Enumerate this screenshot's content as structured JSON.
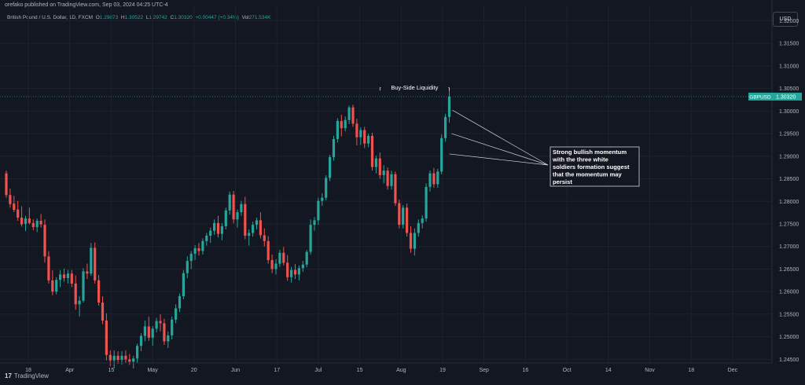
{
  "header": {
    "published": "orefako published on TradingView.com, Sep 03, 2024 04:25 UTC-4",
    "symbol_desc": "British Pound / U.S. Dollar, 1D, FXCM",
    "ohlc": [
      {
        "k": "O",
        "v": "1.29873"
      },
      {
        "k": "H",
        "v": "1.30522"
      },
      {
        "k": "L",
        "v": "1.29742"
      },
      {
        "k": "C",
        "v": "1.30320"
      }
    ],
    "change": "+0.00447 (+0.34%)",
    "volume_label": "Vol",
    "volume": "271.534K"
  },
  "currency_button": "USD",
  "footer": {
    "logo": "17",
    "brand": "TradingView"
  },
  "colors": {
    "up": "#26a69a",
    "down": "#ef5350",
    "background": "#131722",
    "grid": "#1e222d",
    "price_tag": "#26a69a"
  },
  "chart_data": {
    "type": "candlestick",
    "symbol": "GBPUSD",
    "last_price": 1.3032,
    "last_price_label": "1.30320",
    "ylim": [
      1.2442,
      1.3232
    ],
    "y_ticks": [
      "1.32000",
      "1.31500",
      "1.31000",
      "1.30500",
      "1.30000",
      "1.29500",
      "1.29000",
      "1.28500",
      "1.28000",
      "1.27500",
      "1.27000",
      "1.26500",
      "1.26000",
      "1.25500",
      "1.25000",
      "1.24500"
    ],
    "x_ticks": [
      "18",
      "Apr",
      "15",
      "May",
      "20",
      "Jun",
      "17",
      "Jul",
      "15",
      "Aug",
      "19",
      "Sep",
      "16",
      "Oct",
      "14",
      "Nov",
      "18",
      "Dec"
    ],
    "grid": true,
    "candles": [
      [
        1.2862,
        1.2868,
        1.2808,
        1.2814
      ],
      [
        1.2814,
        1.2828,
        1.2786,
        1.2794
      ],
      [
        1.2795,
        1.2812,
        1.2776,
        1.2781
      ],
      [
        1.2782,
        1.2801,
        1.2757,
        1.2764
      ],
      [
        1.2764,
        1.2789,
        1.2744,
        1.2749
      ],
      [
        1.275,
        1.2768,
        1.2734,
        1.2762
      ],
      [
        1.2762,
        1.2786,
        1.2749,
        1.2752
      ],
      [
        1.2752,
        1.276,
        1.2736,
        1.2743
      ],
      [
        1.2743,
        1.2762,
        1.2732,
        1.2757
      ],
      [
        1.2757,
        1.2772,
        1.2742,
        1.2749
      ],
      [
        1.2748,
        1.276,
        1.2664,
        1.2678
      ],
      [
        1.2678,
        1.269,
        1.2618,
        1.2625
      ],
      [
        1.2625,
        1.2647,
        1.2592,
        1.26
      ],
      [
        1.26,
        1.2632,
        1.2594,
        1.2626
      ],
      [
        1.2626,
        1.2648,
        1.261,
        1.2638
      ],
      [
        1.2638,
        1.2651,
        1.2622,
        1.263
      ],
      [
        1.263,
        1.2648,
        1.2618,
        1.264
      ],
      [
        1.264,
        1.2648,
        1.261,
        1.2618
      ],
      [
        1.2618,
        1.2636,
        1.256,
        1.2572
      ],
      [
        1.2572,
        1.259,
        1.2545,
        1.258
      ],
      [
        1.258,
        1.2652,
        1.2576,
        1.2645
      ],
      [
        1.2645,
        1.2662,
        1.2628,
        1.264
      ],
      [
        1.264,
        1.2708,
        1.2635,
        1.2697
      ],
      [
        1.2697,
        1.2709,
        1.2618,
        1.2625
      ],
      [
        1.2625,
        1.2637,
        1.2569,
        1.2576
      ],
      [
        1.2576,
        1.259,
        1.2528,
        1.2536
      ],
      [
        1.2536,
        1.2552,
        1.2448,
        1.246
      ],
      [
        1.246,
        1.247,
        1.2435,
        1.2448
      ],
      [
        1.2448,
        1.247,
        1.243,
        1.2458
      ],
      [
        1.2458,
        1.2468,
        1.244,
        1.2449
      ],
      [
        1.2449,
        1.2468,
        1.2438,
        1.2458
      ],
      [
        1.2458,
        1.247,
        1.2442,
        1.245
      ],
      [
        1.245,
        1.2462,
        1.2438,
        1.2445
      ],
      [
        1.2445,
        1.2458,
        1.243,
        1.2452
      ],
      [
        1.2452,
        1.2485,
        1.2442,
        1.248
      ],
      [
        1.248,
        1.2508,
        1.2468,
        1.2502
      ],
      [
        1.2502,
        1.2536,
        1.249,
        1.2523
      ],
      [
        1.2523,
        1.2545,
        1.2491,
        1.2498
      ],
      [
        1.2498,
        1.2524,
        1.248,
        1.2518
      ],
      [
        1.2518,
        1.2542,
        1.251,
        1.2535
      ],
      [
        1.2535,
        1.255,
        1.2512,
        1.253
      ],
      [
        1.253,
        1.254,
        1.2482,
        1.249
      ],
      [
        1.249,
        1.2512,
        1.2475,
        1.2503
      ],
      [
        1.2503,
        1.2545,
        1.2494,
        1.2538
      ],
      [
        1.2538,
        1.2572,
        1.253,
        1.2563
      ],
      [
        1.2563,
        1.2596,
        1.2555,
        1.259
      ],
      [
        1.259,
        1.2648,
        1.2583,
        1.2641
      ],
      [
        1.2641,
        1.2678,
        1.263,
        1.2668
      ],
      [
        1.2668,
        1.269,
        1.265,
        1.2684
      ],
      [
        1.2684,
        1.2703,
        1.267,
        1.2696
      ],
      [
        1.2696,
        1.2708,
        1.268,
        1.269
      ],
      [
        1.269,
        1.2718,
        1.2682,
        1.2712
      ],
      [
        1.2712,
        1.273,
        1.2702,
        1.2724
      ],
      [
        1.2724,
        1.2742,
        1.2708,
        1.2735
      ],
      [
        1.2735,
        1.276,
        1.2726,
        1.2752
      ],
      [
        1.2752,
        1.2768,
        1.272,
        1.2728
      ],
      [
        1.2728,
        1.2752,
        1.2714,
        1.2745
      ],
      [
        1.2745,
        1.2786,
        1.2738,
        1.278
      ],
      [
        1.278,
        1.2822,
        1.277,
        1.2815
      ],
      [
        1.2815,
        1.2823,
        1.2751,
        1.276
      ],
      [
        1.276,
        1.2782,
        1.2742,
        1.2776
      ],
      [
        1.2776,
        1.2801,
        1.2768,
        1.2794
      ],
      [
        1.2794,
        1.281,
        1.2716,
        1.2724
      ],
      [
        1.2724,
        1.2738,
        1.2702,
        1.273
      ],
      [
        1.273,
        1.2755,
        1.2722,
        1.2748
      ],
      [
        1.2748,
        1.2764,
        1.2738,
        1.2758
      ],
      [
        1.2758,
        1.2776,
        1.2718,
        1.2725
      ],
      [
        1.2725,
        1.274,
        1.27,
        1.2712
      ],
      [
        1.2712,
        1.2723,
        1.2662,
        1.267
      ],
      [
        1.267,
        1.2682,
        1.2641,
        1.265
      ],
      [
        1.265,
        1.2672,
        1.2638,
        1.2662
      ],
      [
        1.2662,
        1.2693,
        1.2655,
        1.2686
      ],
      [
        1.2686,
        1.2699,
        1.2658,
        1.2664
      ],
      [
        1.2664,
        1.2681,
        1.2624,
        1.2632
      ],
      [
        1.2632,
        1.2655,
        1.262,
        1.2648
      ],
      [
        1.2648,
        1.2661,
        1.2628,
        1.2638
      ],
      [
        1.2638,
        1.2658,
        1.2625,
        1.2652
      ],
      [
        1.2652,
        1.2668,
        1.2644,
        1.266
      ],
      [
        1.266,
        1.2692,
        1.2654,
        1.2688
      ],
      [
        1.2688,
        1.276,
        1.2682,
        1.2748
      ],
      [
        1.2748,
        1.2765,
        1.2735,
        1.2758
      ],
      [
        1.2758,
        1.2808,
        1.2748,
        1.2801
      ],
      [
        1.2801,
        1.2818,
        1.279,
        1.2808
      ],
      [
        1.2808,
        1.2858,
        1.2802,
        1.2852
      ],
      [
        1.2852,
        1.2903,
        1.2845,
        1.2898
      ],
      [
        1.2898,
        1.2945,
        1.289,
        1.2938
      ],
      [
        1.2938,
        1.2984,
        1.293,
        1.2978
      ],
      [
        1.2978,
        1.2992,
        1.2944,
        1.2962
      ],
      [
        1.2962,
        1.2988,
        1.2955,
        1.298
      ],
      [
        1.298,
        1.3012,
        1.2971,
        1.3008
      ],
      [
        1.3008,
        1.3014,
        1.2965,
        1.2972
      ],
      [
        1.2972,
        1.2983,
        1.2924,
        1.2942
      ],
      [
        1.2942,
        1.2964,
        1.2925,
        1.2958
      ],
      [
        1.2958,
        1.2965,
        1.2918,
        1.2928
      ],
      [
        1.2928,
        1.295,
        1.292,
        1.2945
      ],
      [
        1.2945,
        1.2952,
        1.2868,
        1.2876
      ],
      [
        1.2876,
        1.2901,
        1.2862,
        1.2895
      ],
      [
        1.2895,
        1.2908,
        1.285,
        1.2858
      ],
      [
        1.2858,
        1.288,
        1.284,
        1.2868
      ],
      [
        1.2868,
        1.2875,
        1.2826,
        1.2834
      ],
      [
        1.2834,
        1.2868,
        1.2826,
        1.286
      ],
      [
        1.286,
        1.2866,
        1.279,
        1.2796
      ],
      [
        1.2796,
        1.2804,
        1.274,
        1.2748
      ],
      [
        1.2748,
        1.2792,
        1.274,
        1.2786
      ],
      [
        1.2786,
        1.2795,
        1.2722,
        1.273
      ],
      [
        1.273,
        1.2745,
        1.2686,
        1.2695
      ],
      [
        1.2695,
        1.274,
        1.268,
        1.273
      ],
      [
        1.273,
        1.276,
        1.2722,
        1.2752
      ],
      [
        1.2752,
        1.2769,
        1.274,
        1.2762
      ],
      [
        1.2762,
        1.284,
        1.2755,
        1.2832
      ],
      [
        1.2832,
        1.2868,
        1.2822,
        1.2862
      ],
      [
        1.2862,
        1.2874,
        1.283,
        1.2838
      ],
      [
        1.2838,
        1.2872,
        1.283,
        1.2866
      ],
      [
        1.2866,
        1.2948,
        1.286,
        1.294
      ],
      [
        1.294,
        1.2994,
        1.2932,
        1.2987
      ],
      [
        1.2987,
        1.3052,
        1.2974,
        1.3032
      ]
    ],
    "annotations": [
      {
        "text": "Buy-Side Liquidity"
      },
      {
        "text": "Strong bullish momentum with the three white soldiers formation suggest that the momentum may persist",
        "lines": [
          "Strong bullish momentum",
          "with the three white",
          "soldiers formation suggest",
          "that the momentum may",
          "persist"
        ]
      }
    ]
  }
}
